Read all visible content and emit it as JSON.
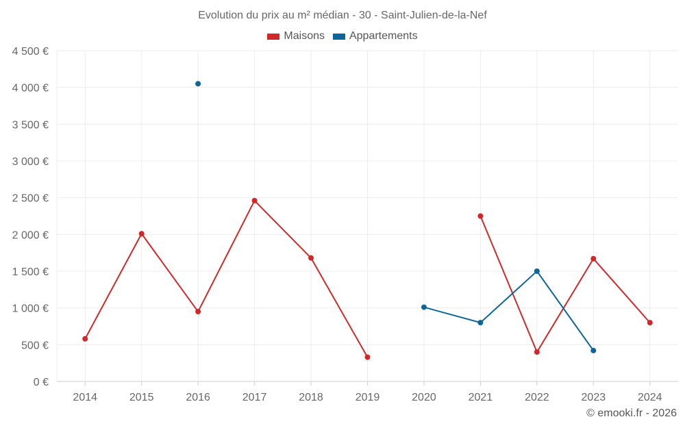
{
  "chart_data": {
    "type": "line",
    "title": "Evolution du prix au m² médian - 30 - Saint-Julien-de-la-Nef",
    "x": [
      "2014",
      "2015",
      "2016",
      "2017",
      "2018",
      "2019",
      "2020",
      "2021",
      "2022",
      "2023",
      "2024"
    ],
    "yticks": [
      "0 €",
      "500 €",
      "1 000 €",
      "1 500 €",
      "2 000 €",
      "2 500 €",
      "3 000 €",
      "3 500 €",
      "4 000 €",
      "4 500 €"
    ],
    "ylim": [
      0,
      4500
    ],
    "grid": true,
    "legend_position": "top",
    "series": [
      {
        "name": "Maisons",
        "color": "#d32626",
        "values": [
          580,
          2010,
          950,
          2460,
          1680,
          330,
          null,
          2250,
          400,
          1670,
          800
        ]
      },
      {
        "name": "Appartements",
        "color": "#0d6699",
        "values": [
          null,
          null,
          4050,
          null,
          null,
          null,
          1010,
          800,
          1500,
          420,
          null
        ]
      }
    ]
  },
  "credit": "© emooki.fr - 2026"
}
